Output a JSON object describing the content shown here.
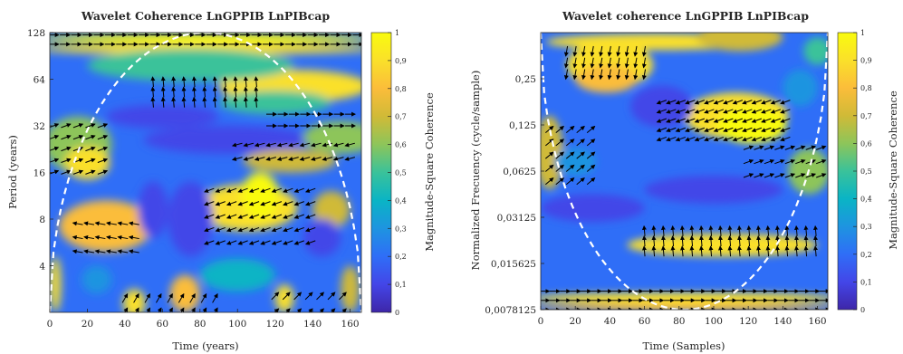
{
  "colors": {
    "colormap": [
      "#3e26a8",
      "#4346e8",
      "#2f6ef7",
      "#1e94e0",
      "#0ab4c5",
      "#3ac29a",
      "#8dc55a",
      "#d0ba37",
      "#fbbd3a",
      "#fae02a",
      "#f9fb0e"
    ],
    "arrows": "#000000",
    "coi": "#ffffff"
  },
  "chart_data": [
    {
      "type": "heatmap",
      "title": "Wavelet Coherence LnGPPIB LnPIBcap",
      "xlabel": "Time (years)",
      "ylabel": "Period (years)",
      "xlim": [
        0,
        166
      ],
      "x_ticks": [
        "0",
        "20",
        "40",
        "60",
        "80",
        "100",
        "120",
        "140",
        "160"
      ],
      "y_scale": "log2",
      "ylim": [
        2,
        128
      ],
      "y_ticks": [
        "4",
        "8",
        "16",
        "32",
        "64",
        "128"
      ],
      "colorbar": {
        "label": "Magnitude-Square Coherence",
        "range": [
          0,
          1
        ],
        "ticks": [
          "0",
          "0,1",
          "0,2",
          "0,3",
          "0,4",
          "0,5",
          "0,6",
          "0,7",
          "0,8",
          "0,9",
          "1"
        ]
      },
      "cone_of_influence": "dashed white",
      "phase_arrows": true
    },
    {
      "type": "heatmap",
      "title": "Wavelet coherence LnGPPIB LnPIBcap",
      "xlabel": "Time (Samples)",
      "ylabel": "Normalized Frecuency (cycle/sample)",
      "xlim": [
        0,
        166
      ],
      "x_ticks": [
        "0",
        "20",
        "40",
        "60",
        "80",
        "100",
        "120",
        "140",
        "160"
      ],
      "y_scale": "log2",
      "ylim": [
        0.0078125,
        0.5
      ],
      "y_ticks": [
        "0,25",
        "0,125",
        "0,0625",
        "0,03125",
        "0,015625",
        "0,0078125"
      ],
      "colorbar": {
        "label": "Magnitude-Square Coherence",
        "range": [
          0,
          1
        ],
        "ticks": [
          "0",
          "0,1",
          "0,2",
          "0,3",
          "0,4",
          "0,5",
          "0,6",
          "0,7",
          "0,8",
          "0,9",
          "1"
        ]
      },
      "cone_of_influence": "dashed white",
      "phase_arrows": true
    }
  ]
}
